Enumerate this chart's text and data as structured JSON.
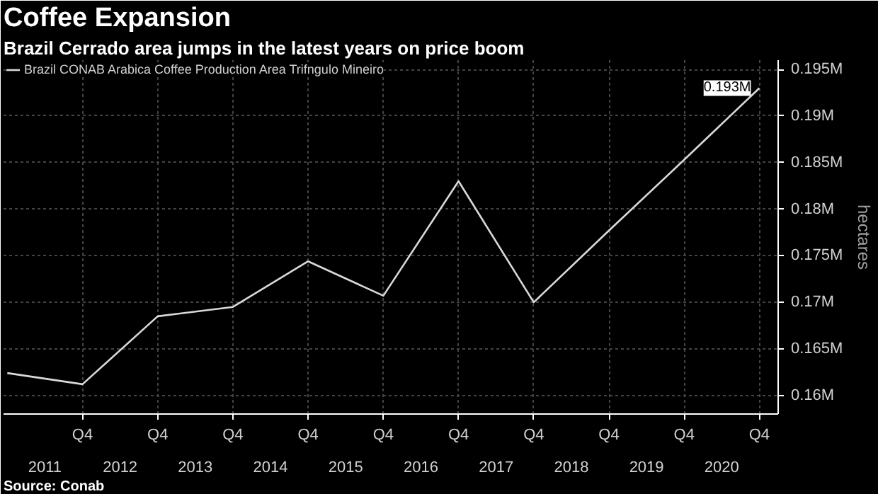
{
  "chart_data": {
    "type": "line",
    "title": "Coffee Expansion",
    "subtitle": "Brazil Cerrado area jumps in the latest years on price boom",
    "ylabel": "hectares",
    "categories": [
      null,
      "Q4",
      "Q4",
      "Q4",
      "Q4",
      "Q4",
      "Q4",
      "Q4",
      "Q4",
      "Q4",
      "Q4"
    ],
    "series": [
      {
        "name": "Brazil CONAB Arabica Coffee Production Area Trifngulo Mineiro",
        "color": "#d9d9d9",
        "values": [
          0.1624,
          0.1612,
          0.1685,
          0.1695,
          0.1744,
          0.1707,
          0.183,
          0.17,
          0.1777,
          0.1853,
          0.193
        ]
      }
    ],
    "ylim": [
      0.158,
      0.196
    ],
    "yticks": [
      {
        "value": 0.16,
        "label": "0.16M"
      },
      {
        "value": 0.165,
        "label": "0.165M"
      },
      {
        "value": 0.17,
        "label": "0.17M"
      },
      {
        "value": 0.175,
        "label": "0.175M"
      },
      {
        "value": 0.18,
        "label": "0.18M"
      },
      {
        "value": 0.185,
        "label": "0.185M"
      },
      {
        "value": 0.19,
        "label": "0.19M"
      },
      {
        "value": 0.195,
        "label": "0.195M"
      }
    ],
    "annotations": [
      {
        "text": "0.193M",
        "y": 0.193
      },
      "2011",
      "2012",
      "2013",
      "2014",
      "2015",
      "2016",
      "2017",
      "2018",
      "2019",
      "2020",
      "Source: Conab"
    ],
    "grid": true,
    "legend": "top left",
    "marker": "none",
    "line_style": "solid"
  }
}
